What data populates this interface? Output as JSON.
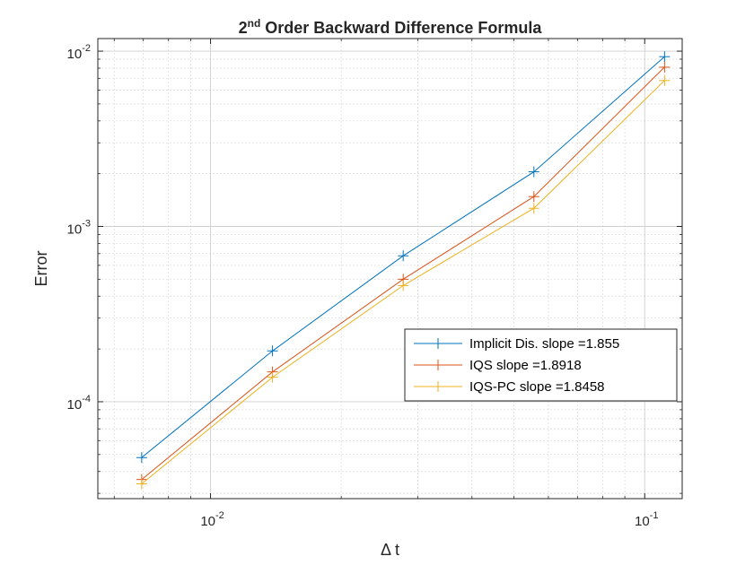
{
  "chart_data": {
    "type": "line",
    "title": "2nd Order Backward Difference Formula",
    "title_base": "2",
    "title_sup": "nd",
    "title_rest": " Order Backward Difference Formula",
    "xlabel": "Δ t",
    "ylabel": "Error",
    "xscale": "log",
    "yscale": "log",
    "xlim": [
      0.0055,
      0.122
    ],
    "ylim": [
      2.8e-05,
      0.0118
    ],
    "grid": true,
    "legend_position": "lower-right",
    "x_ticks": [
      {
        "value": 0.01,
        "base": "10",
        "exp": "-2"
      },
      {
        "value": 0.1,
        "base": "10",
        "exp": "-1"
      }
    ],
    "y_ticks": [
      {
        "value": 0.0001,
        "base": "10",
        "exp": "-4"
      },
      {
        "value": 0.001,
        "base": "10",
        "exp": "-3"
      },
      {
        "value": 0.01,
        "base": "10",
        "exp": "-2"
      }
    ],
    "x": [
      0.00694,
      0.01389,
      0.02778,
      0.05556,
      0.1111
    ],
    "series": [
      {
        "name": "Implicit Dis. slope =1.855",
        "color": "#0072BD",
        "values": [
          4.8e-05,
          0.000195,
          0.00068,
          0.00205,
          0.0093
        ]
      },
      {
        "name": "IQS slope =1.8918",
        "color": "#D95319",
        "values": [
          3.6e-05,
          0.000148,
          0.0005,
          0.00148,
          0.0081
        ]
      },
      {
        "name": "IQS-PC slope =1.8458",
        "color": "#EDB120",
        "values": [
          3.4e-05,
          0.000138,
          0.00046,
          0.00127,
          0.0068
        ]
      }
    ]
  }
}
